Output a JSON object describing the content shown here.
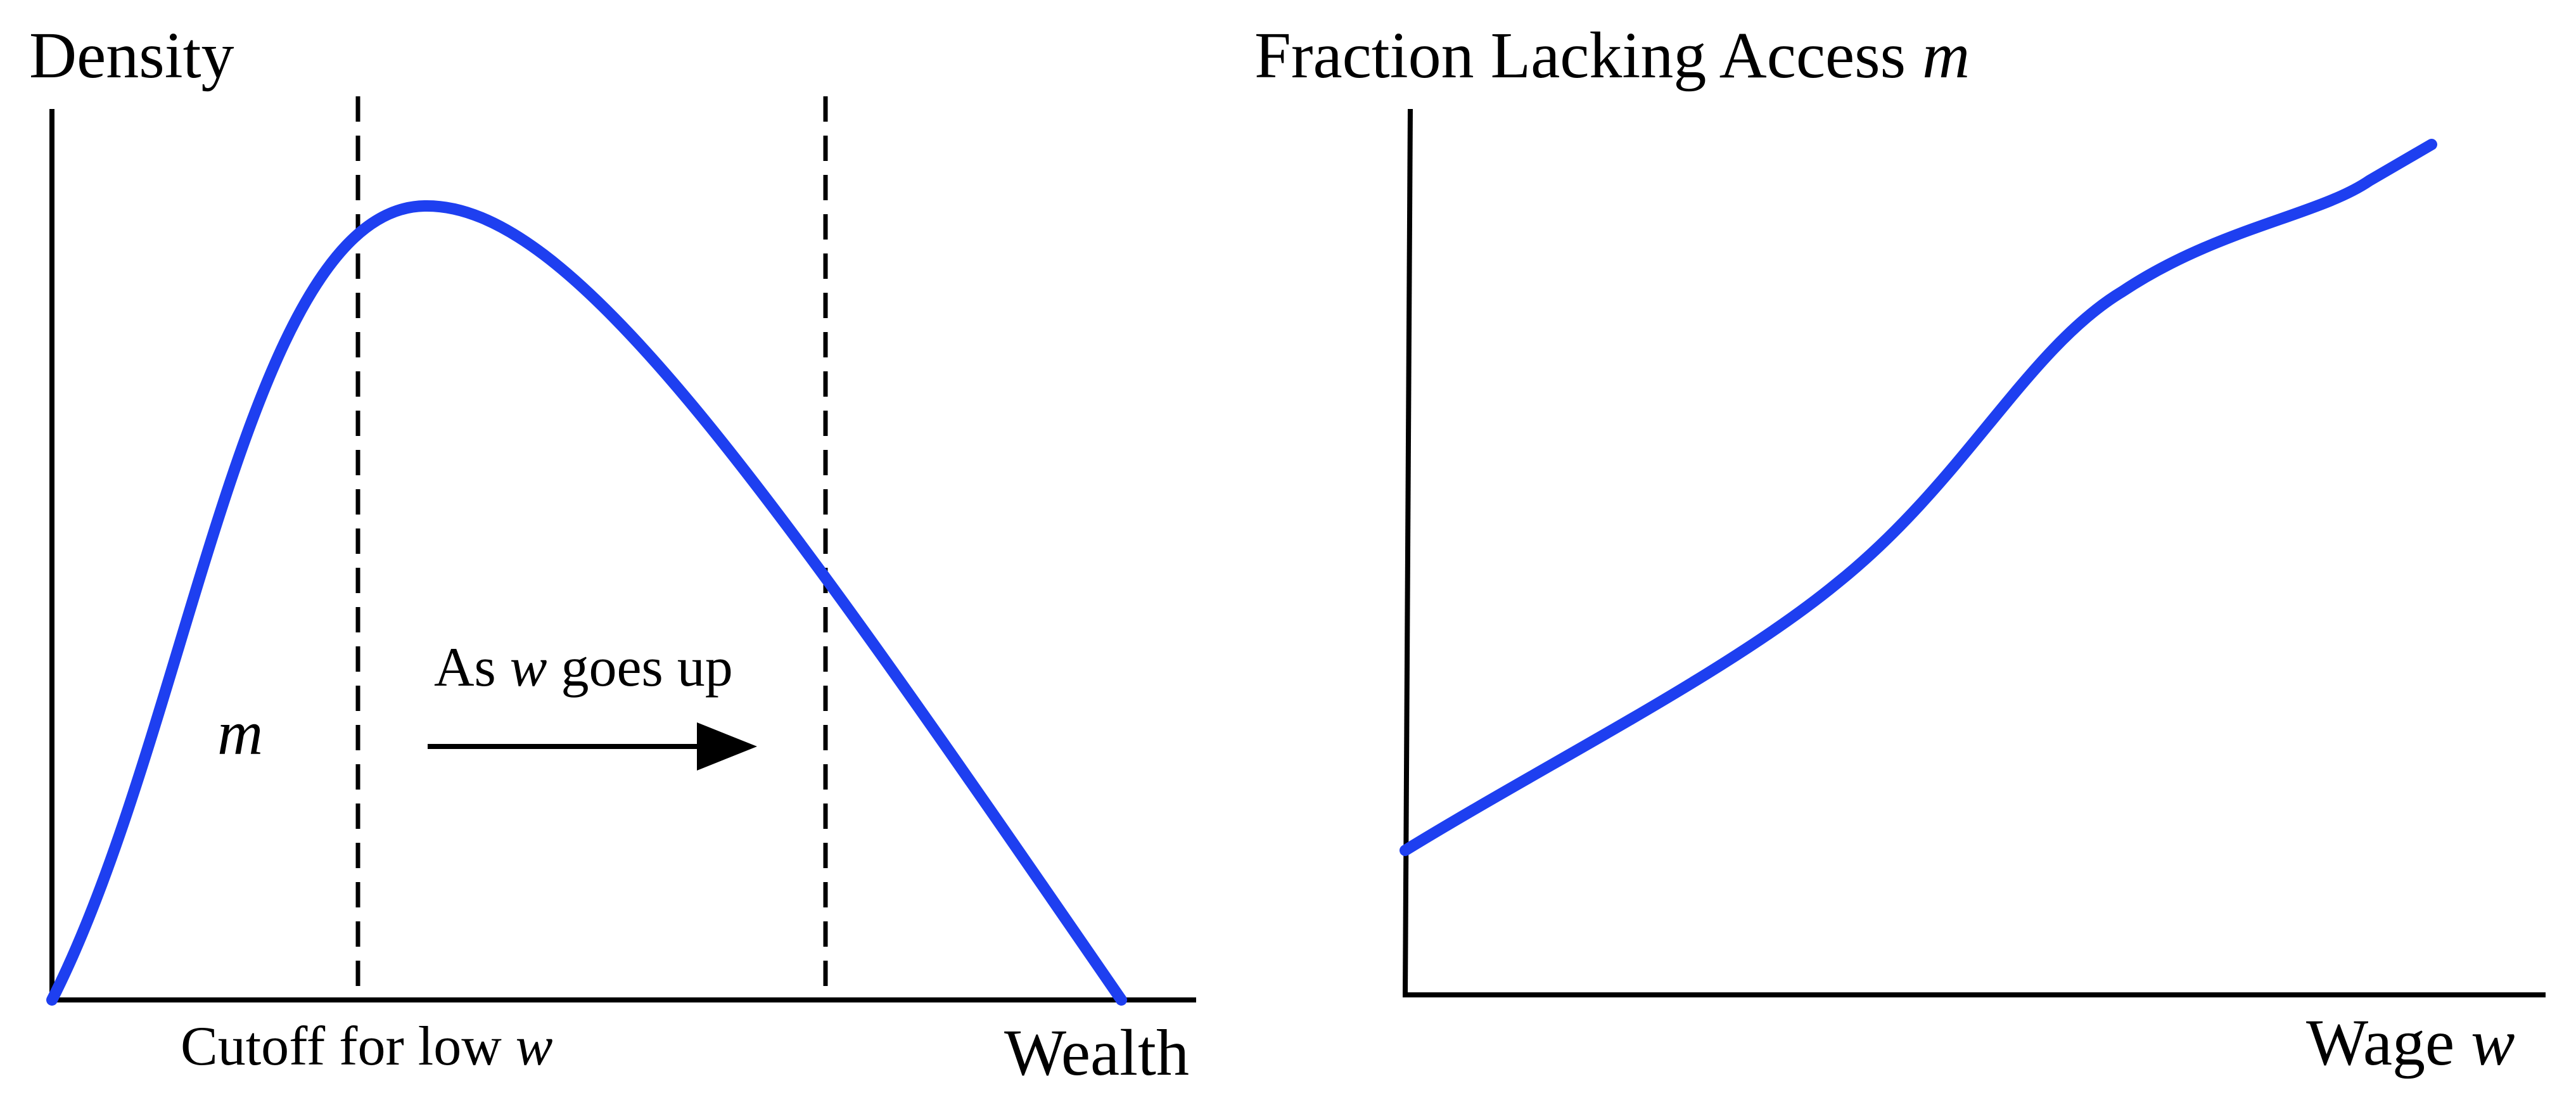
{
  "left_panel": {
    "y_axis_label": "Density",
    "x_axis_label": "Wealth",
    "cutoff_label": "Cutoff for low ",
    "cutoff_var": "w",
    "area_label": "m",
    "arrow_label_pre": "As ",
    "arrow_label_var": "w",
    "arrow_label_post": " goes up"
  },
  "right_panel": {
    "y_axis_label": "Fraction Lacking Access ",
    "y_axis_var": "m",
    "x_axis_label": "Wage ",
    "x_axis_var": "w"
  },
  "colors": {
    "curve": "#1e3ff0",
    "axis": "#000000"
  }
}
